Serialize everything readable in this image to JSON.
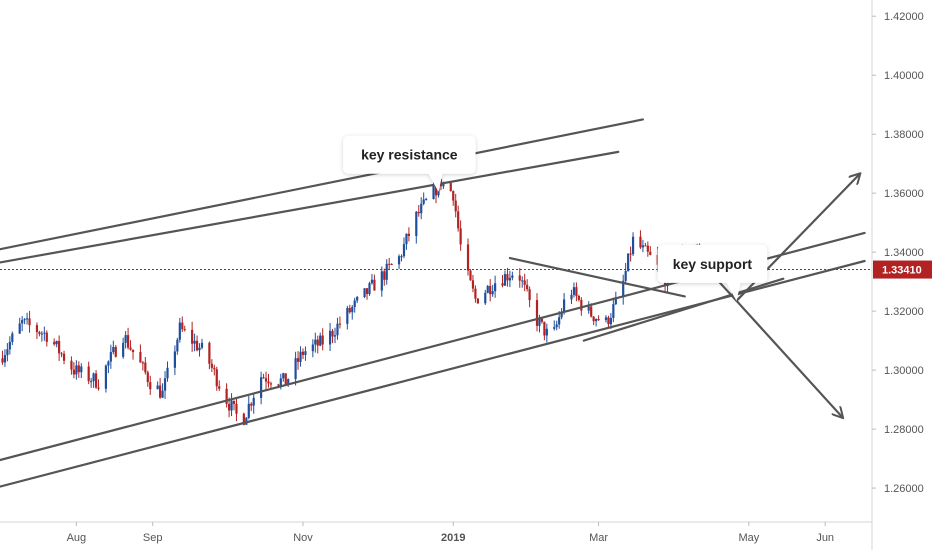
{
  "chart_data": {
    "type": "candlestick",
    "y_axis_side": "right",
    "ylim": [
      1.2485,
      1.4255
    ],
    "y_ticks": [
      "1.42000",
      "1.40000",
      "1.38000",
      "1.36000",
      "1.34000",
      "1.32000",
      "1.30000",
      "1.28000",
      "1.26000"
    ],
    "y_tick_values": [
      1.42,
      1.4,
      1.38,
      1.36,
      1.34,
      1.32,
      1.3,
      1.28,
      1.26
    ],
    "x_ticks": [
      "Aug",
      "Sep",
      "Nov",
      "2019",
      "Mar",
      "May",
      "Jun"
    ],
    "x_tick_dates": [
      "2018-08-01",
      "2018-09-01",
      "2018-11-01",
      "2019-01-01",
      "2019-03-01",
      "2019-05-01",
      "2019-06-01"
    ],
    "x_range": [
      "2018-07-01",
      "2019-06-20"
    ],
    "current_price": {
      "label": "1.33410",
      "value": 1.3341
    },
    "colors": {
      "up": "#1f4e9c",
      "down": "#b22222",
      "price_line": "#b22222",
      "trendline": "#555555",
      "badge": "#b22222",
      "axis_text": "#555555"
    },
    "trend_points": [
      [
        "2018-07-01",
        1.304
      ],
      [
        "2018-07-10",
        1.316
      ],
      [
        "2018-07-20",
        1.312
      ],
      [
        "2018-07-31",
        1.3
      ],
      [
        "2018-08-10",
        1.296
      ],
      [
        "2018-08-20",
        1.312
      ],
      [
        "2018-08-31",
        1.296
      ],
      [
        "2018-09-05",
        1.292
      ],
      [
        "2018-09-12",
        1.314
      ],
      [
        "2018-09-22",
        1.306
      ],
      [
        "2018-10-01",
        1.29
      ],
      [
        "2018-10-07",
        1.282
      ],
      [
        "2018-10-15",
        1.298
      ],
      [
        "2018-10-25",
        1.296
      ],
      [
        "2018-11-01",
        1.306
      ],
      [
        "2018-11-10",
        1.31
      ],
      [
        "2018-11-20",
        1.32
      ],
      [
        "2018-12-01",
        1.33
      ],
      [
        "2018-12-10",
        1.338
      ],
      [
        "2018-12-17",
        1.352
      ],
      [
        "2018-12-27",
        1.364
      ],
      [
        "2019-01-01",
        1.36
      ],
      [
        "2019-01-05",
        1.336
      ],
      [
        "2019-01-10",
        1.324
      ],
      [
        "2019-01-18",
        1.33
      ],
      [
        "2019-01-27",
        1.334
      ],
      [
        "2019-02-03",
        1.318
      ],
      [
        "2019-02-10",
        1.31
      ],
      [
        "2019-02-17",
        1.328
      ],
      [
        "2019-02-24",
        1.32
      ],
      [
        "2019-03-04",
        1.316
      ],
      [
        "2019-03-10",
        1.326
      ],
      [
        "2019-03-15",
        1.344
      ],
      [
        "2019-03-22",
        1.338
      ],
      [
        "2019-03-29",
        1.33
      ],
      [
        "2019-04-03",
        1.338
      ],
      [
        "2019-04-09",
        1.342
      ],
      [
        "2019-04-14",
        1.3341
      ]
    ],
    "annotations": [
      {
        "text": "key resistance",
        "date": "2018-12-26",
        "price": 1.3605
      },
      {
        "text": "key support",
        "date": "2019-04-26",
        "price": 1.3235
      }
    ],
    "trendlines": [
      {
        "name": "upper-channel-outer",
        "from": [
          "2018-07-01",
          1.341
        ],
        "to": [
          "2019-03-19",
          1.385
        ]
      },
      {
        "name": "upper-channel-inner",
        "from": [
          "2018-07-01",
          1.3365
        ],
        "to": [
          "2019-03-09",
          1.374
        ]
      },
      {
        "name": "lower-channel-upper",
        "from": [
          "2018-07-01",
          1.2695
        ],
        "to": [
          "2019-06-17",
          1.3465
        ]
      },
      {
        "name": "lower-channel-lower",
        "from": [
          "2018-07-01",
          1.2605
        ],
        "to": [
          "2019-06-17",
          1.337
        ]
      },
      {
        "name": "triangle-upper",
        "from": [
          "2019-01-24",
          1.338
        ],
        "to": [
          "2019-04-05",
          1.325
        ]
      },
      {
        "name": "triangle-lower",
        "from": [
          "2019-02-23",
          1.31
        ],
        "to": [
          "2019-05-15",
          1.331
        ]
      },
      {
        "name": "path-to-support",
        "from": [
          "2019-04-15",
          1.3335
        ],
        "to": [
          "2019-04-26",
          1.3235
        ]
      },
      {
        "name": "bullish-scenario",
        "from": [
          "2019-04-26",
          1.3235
        ],
        "to": [
          "2019-06-15",
          1.3665
        ],
        "arrow": true
      },
      {
        "name": "bearish-scenario",
        "from": [
          "2019-04-26",
          1.3235
        ],
        "to": [
          "2019-06-08",
          1.284
        ],
        "arrow": true
      }
    ]
  }
}
